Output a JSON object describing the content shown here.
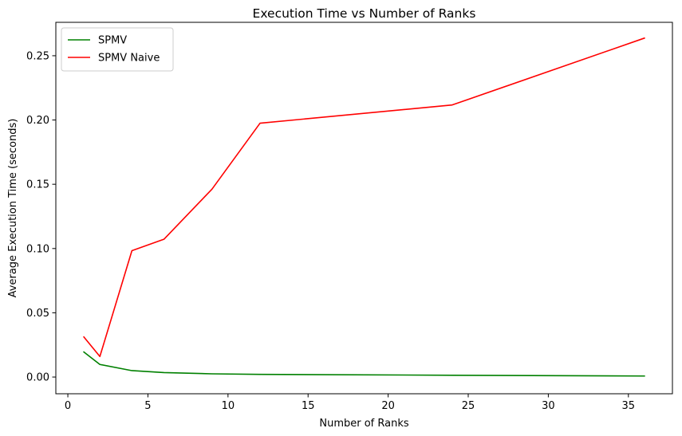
{
  "chart_data": {
    "type": "line",
    "title": "Execution Time vs Number of Ranks",
    "xlabel": "Number of Ranks",
    "ylabel": "Average Execution Time (seconds)",
    "xlim": [
      -0.75,
      37.75
    ],
    "ylim": [
      -0.013,
      0.276
    ],
    "xticks": [
      0,
      5,
      10,
      15,
      20,
      25,
      30,
      35
    ],
    "xtick_labels": [
      "0",
      "5",
      "10",
      "15",
      "20",
      "25",
      "30",
      "35"
    ],
    "yticks": [
      0.0,
      0.05,
      0.1,
      0.15,
      0.2,
      0.25
    ],
    "ytick_labels": [
      "0.00",
      "0.05",
      "0.10",
      "0.15",
      "0.20",
      "0.25"
    ],
    "grid": false,
    "legend_position": "top-left",
    "series": [
      {
        "name": "SPMV",
        "color": "#008000",
        "x": [
          1,
          2,
          4,
          6,
          9,
          12,
          24,
          36
        ],
        "y": [
          0.0195,
          0.0098,
          0.005,
          0.0035,
          0.0025,
          0.0021,
          0.0014,
          0.0008
        ]
      },
      {
        "name": "SPMV Naive",
        "color": "#ff0000",
        "x": [
          1,
          2,
          4,
          6,
          9,
          12,
          24,
          36
        ],
        "y": [
          0.0312,
          0.016,
          0.0983,
          0.1072,
          0.1462,
          0.1975,
          0.2117,
          0.2637
        ]
      }
    ]
  }
}
